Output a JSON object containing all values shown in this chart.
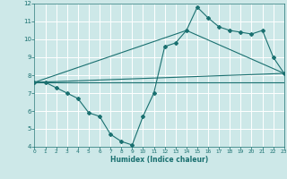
{
  "xlabel": "Humidex (Indice chaleur)",
  "ylabel": "",
  "bg_color": "#cde8e8",
  "line_color": "#1a7070",
  "grid_color": "#ffffff",
  "series1_x": [
    0,
    1,
    2,
    3,
    4,
    5,
    6,
    7,
    8,
    9,
    10,
    11,
    12,
    13,
    14,
    15,
    16,
    17,
    18,
    19,
    20,
    21,
    22,
    23
  ],
  "series1_y": [
    7.6,
    7.6,
    7.3,
    7.0,
    6.7,
    5.9,
    5.7,
    4.7,
    4.3,
    4.1,
    5.7,
    7.0,
    9.6,
    9.8,
    10.5,
    11.8,
    11.2,
    10.7,
    10.5,
    10.4,
    10.3,
    10.5,
    9.0,
    8.1
  ],
  "series2_x": [
    0,
    23
  ],
  "series2_y": [
    7.6,
    8.1
  ],
  "series3_x": [
    0,
    14,
    23
  ],
  "series3_y": [
    7.6,
    10.5,
    8.1
  ],
  "series4_x": [
    0,
    23
  ],
  "series4_y": [
    7.6,
    7.6
  ],
  "xlim": [
    0,
    23
  ],
  "ylim": [
    4,
    12
  ],
  "xticks": [
    0,
    1,
    2,
    3,
    4,
    5,
    6,
    7,
    8,
    9,
    10,
    11,
    12,
    13,
    14,
    15,
    16,
    17,
    18,
    19,
    20,
    21,
    22,
    23
  ],
  "yticks": [
    4,
    5,
    6,
    7,
    8,
    9,
    10,
    11,
    12
  ]
}
